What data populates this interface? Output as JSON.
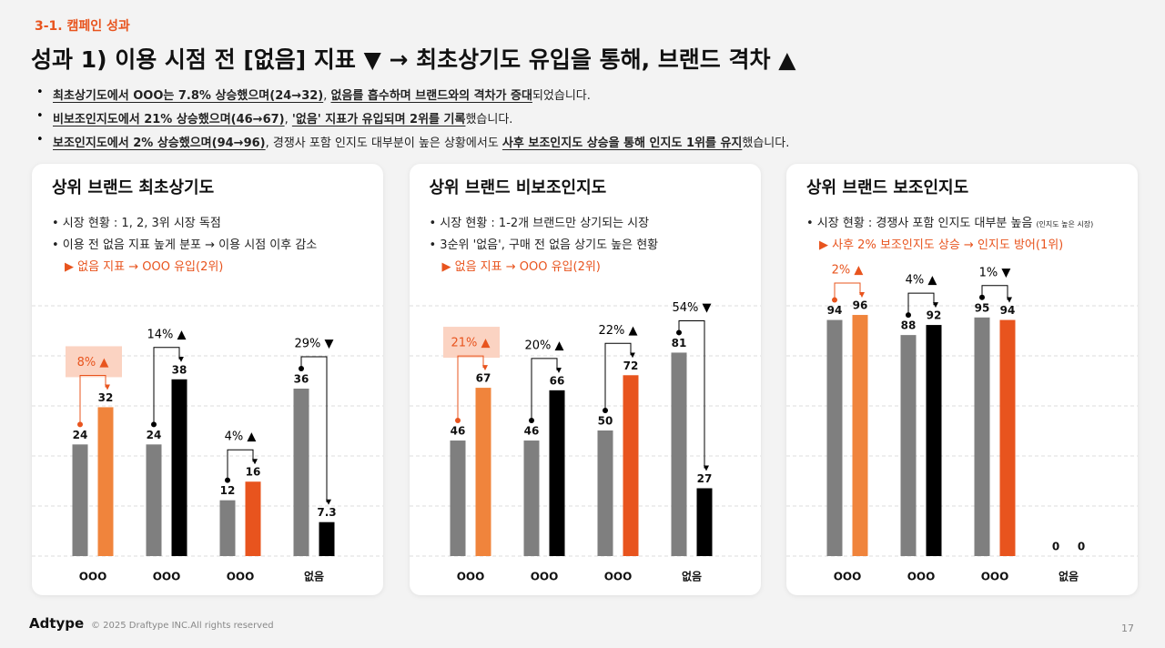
{
  "section": "3-1. 캠페인 성과",
  "title": "성과 1) 이용 시점 전 [없음] 지표 ▼ → 최초상기도 유입을 통해, 브랜드 격차 ▲",
  "bullets": [
    [
      {
        "text": "최초상기도에서 OOO는 7.8% 상승했으며(24→32)",
        "underline": true
      },
      ", ",
      {
        "text": "없음를 흡수하며 브랜드와의 격차가 증대",
        "underline": true
      },
      "되었습니다."
    ],
    [
      {
        "text": "비보조인지도에서 21% 상승했으며(46→67)",
        "underline": true
      },
      ", ",
      {
        "text": "'없음' 지표가 유입되며 2위를 기록",
        "underline": true
      },
      "했습니다."
    ],
    [
      {
        "text": "보조인지도에서 2% 상승했으며(94→96)",
        "underline": true
      },
      ", 경쟁사 포함 인지도 대부분이 높은 상황에서도 ",
      {
        "text": "사후 보조인지도 상승을 통해 인지도 1위를 유지",
        "underline": true
      },
      "했습니다."
    ]
  ],
  "footer": {
    "brand": "Adtype",
    "copyright": "© 2025 Draftype INC.All rights reserved",
    "page": 17
  },
  "chart_data": [
    {
      "type": "bar",
      "title": "상위 브랜드 최초상기도",
      "notes": [
        {
          "text": "• 시장 현황 : 1, 2, 3위 시장 독점"
        },
        {
          "text": "• 이용 전 없음 지표 높게 분포 → 이용 시점 이후 감소"
        },
        {
          "text": "▶ 없음 지표 → OOO 유입(2위)",
          "accent": true
        }
      ],
      "categories": [
        "OOO",
        "OOO",
        "OOO",
        "없음"
      ],
      "series": [
        {
          "color": "#7f7f7f",
          "values": [
            24,
            24,
            12,
            36
          ]
        },
        {
          "colors": [
            "#f0843c",
            "#000000",
            "#e8541e",
            "#000000"
          ],
          "values": [
            32,
            38,
            16,
            7.3
          ]
        }
      ],
      "change_labels": [
        "8% ▲",
        "14% ▲",
        "4% ▲",
        "29% ▼"
      ],
      "accent_index": 0,
      "highlight_box": true,
      "ylim": [
        0,
        54
      ],
      "grid": true
    },
    {
      "type": "bar",
      "title": "상위 브랜드 비보조인지도",
      "notes": [
        {
          "text": "• 시장 현황 : 1-2개 브랜드만 상기되는 시장"
        },
        {
          "text": "• 3순위 '없음', 구매 전 없음 상기도 높은 현황"
        },
        {
          "text": "▶ 없음 지표 → OOO 유입(2위)",
          "accent": true
        }
      ],
      "categories": [
        "OOO",
        "OOO",
        "OOO",
        "없음"
      ],
      "series": [
        {
          "color": "#7f7f7f",
          "values": [
            46,
            46,
            50,
            81
          ]
        },
        {
          "colors": [
            "#f0843c",
            "#000000",
            "#e8541e",
            "#000000"
          ],
          "values": [
            67,
            66,
            72,
            27
          ]
        }
      ],
      "change_labels": [
        "21% ▲",
        "20% ▲",
        "22% ▲",
        "54% ▼"
      ],
      "accent_index": 0,
      "highlight_box": true,
      "ylim": [
        0,
        100
      ],
      "grid": true
    },
    {
      "type": "bar",
      "title": "상위 브랜드 보조인지도",
      "notes": [
        {
          "text": "• 시장 현황 : 경쟁사 포함 인지도 대부분 높음",
          "small": "(인지도 높은 시장)"
        },
        {
          "text": "▶ 사후 2% 보조인지도 상승 → 인지도 방어(1위)",
          "accent": true
        }
      ],
      "categories": [
        "OOO",
        "OOO",
        "OOO",
        "없음"
      ],
      "series": [
        {
          "color": "#7f7f7f",
          "values": [
            94,
            88,
            95,
            0
          ]
        },
        {
          "colors": [
            "#f0843c",
            "#000000",
            "#e8541e",
            "#e8541e"
          ],
          "values": [
            96,
            92,
            94,
            0
          ]
        }
      ],
      "change_labels": [
        "2% ▲",
        "4% ▲",
        "1% ▼",
        null
      ],
      "accent_index": 0,
      "highlight_box": false,
      "ylim": [
        0,
        100
      ],
      "grid": true
    }
  ]
}
